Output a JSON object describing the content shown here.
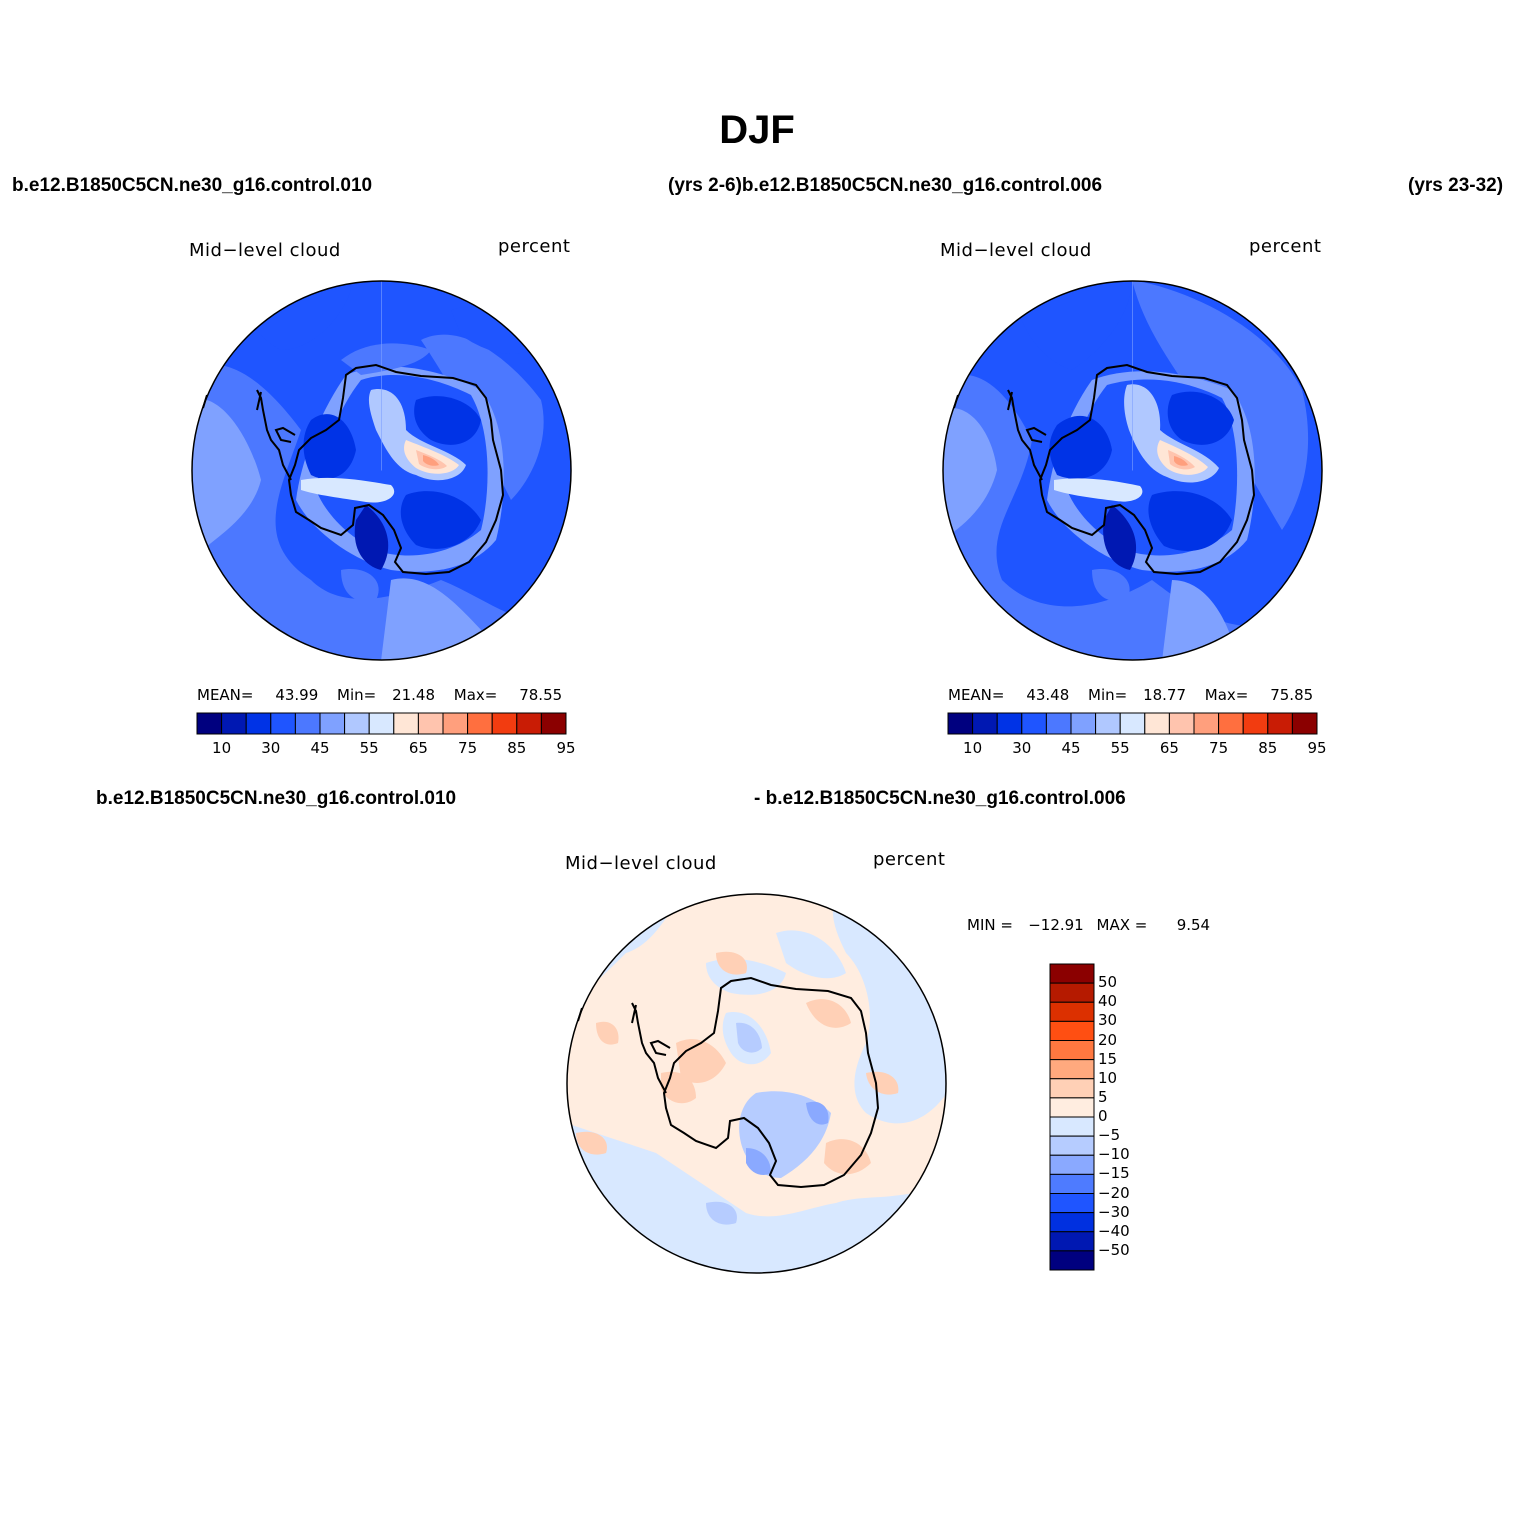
{
  "figure": {
    "title": "DJF",
    "top_left_case": "b.e12.B1850C5CN.ne30_g16.control.010",
    "top_mid_case": "(yrs 2-6)b.e12.B1850C5CN.ne30_g16.control.006",
    "top_right_years": "(yrs 23-32)",
    "bottom_left_case": "b.e12.B1850C5CN.ne30_g16.control.010",
    "bottom_mid_case": "- b.e12.B1850C5CN.ne30_g16.control.006"
  },
  "panels": [
    {
      "variable": "Mid−level cloud",
      "units": "percent",
      "stats": {
        "mean_label": "MEAN=",
        "mean": "43.99",
        "min_label": "Min=",
        "min": "21.48",
        "max_label": "Max=",
        "max": "78.55"
      }
    },
    {
      "variable": "Mid−level cloud",
      "units": "percent",
      "stats": {
        "mean_label": "MEAN=",
        "mean": "43.48",
        "min_label": "Min=",
        "min": "18.77",
        "max_label": "Max=",
        "max": "75.85"
      }
    },
    {
      "variable": "Mid−level cloud",
      "units": "percent",
      "stats": {
        "min_label": "MIN =",
        "min": "−12.91",
        "max_label": "MAX =",
        "max": "9.54"
      }
    }
  ],
  "colorbars": {
    "field": {
      "colors": [
        "#00007f",
        "#0018b2",
        "#0033e6",
        "#1f55ff",
        "#4c78ff",
        "#7fa1ff",
        "#b0c8ff",
        "#d8e8ff",
        "#ffe6d6",
        "#ffc4ae",
        "#ff9f7d",
        "#ff6f3f",
        "#f23c10",
        "#c91c05",
        "#8b0000"
      ],
      "labels": [
        "10",
        "30",
        "45",
        "55",
        "65",
        "75",
        "85",
        "95"
      ]
    },
    "diff": {
      "colors": [
        "#8b0000",
        "#b51a00",
        "#dc3000",
        "#ff4f12",
        "#ff7840",
        "#ffa97e",
        "#ffd0b6",
        "#ffede0",
        "#d8e8ff",
        "#b6ccff",
        "#8aa9ff",
        "#4e7bff",
        "#1f55ff",
        "#0030e0",
        "#0018b2",
        "#00007f"
      ],
      "labels": [
        "50",
        "40",
        "30",
        "20",
        "15",
        "10",
        "5",
        "0",
        "−5",
        "−10",
        "−15",
        "−20",
        "−30",
        "−40",
        "−50"
      ]
    }
  }
}
